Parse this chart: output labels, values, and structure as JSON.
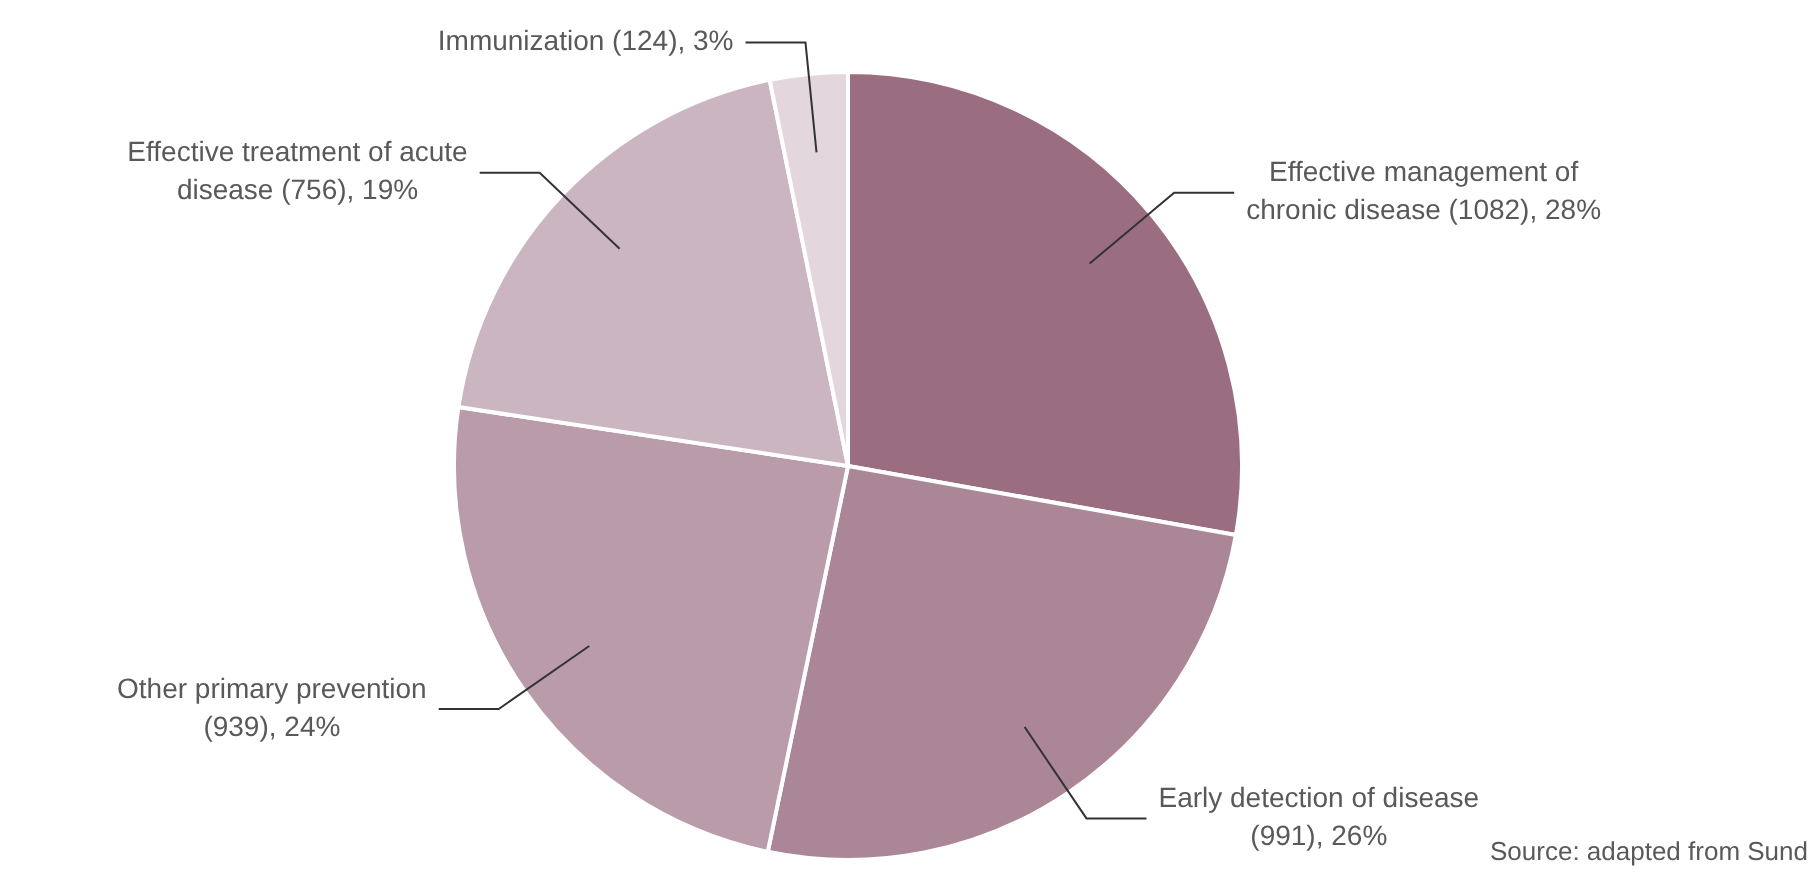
{
  "chart_data": {
    "type": "pie",
    "categories": [
      "Effective management of chronic disease",
      "Early detection of disease",
      "Other primary prevention",
      "Effective treatment of acute disease",
      "Immunization"
    ],
    "values": [
      1082,
      991,
      939,
      756,
      124
    ],
    "value_labels": [
      "(1082), 28%",
      "(991), 26%",
      "(939), 24%",
      "(756), 19%",
      "(124), 3%"
    ],
    "colors": [
      "#9a6e80",
      "#aa8696",
      "#b99ba9",
      "#cbb5c0",
      "#e3d6dc"
    ],
    "annotations": [
      "Source: adapted from Sund"
    ]
  }
}
